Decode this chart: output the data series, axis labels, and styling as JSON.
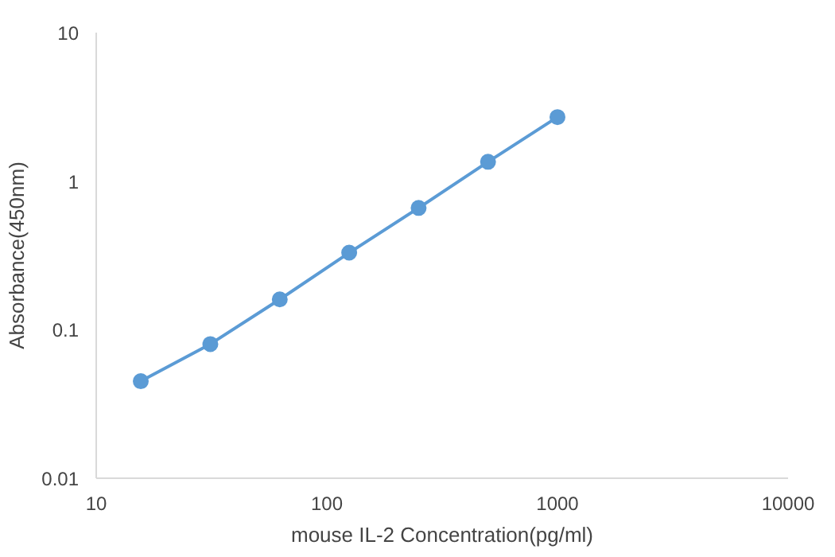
{
  "chart_data": {
    "type": "line",
    "xlabel": "mouse IL-2 Concentration(pg/ml)",
    "ylabel": "Absorbance(450nm)",
    "x": [
      15.6,
      31.25,
      62.5,
      125,
      250,
      500,
      1000
    ],
    "series": [
      {
        "color": "#5b9bd5",
        "values": [
          0.045,
          0.08,
          0.16,
          0.33,
          0.66,
          1.35,
          2.7
        ]
      }
    ],
    "log": "xy",
    "xlim": [
      10,
      10000
    ],
    "ylim": [
      0.01,
      10
    ],
    "xticks": [
      10,
      100,
      1000,
      10000
    ],
    "yticks": [
      0.01,
      0.1,
      1,
      10
    ],
    "grid": false,
    "marker": "circle",
    "line_style": "solid"
  }
}
